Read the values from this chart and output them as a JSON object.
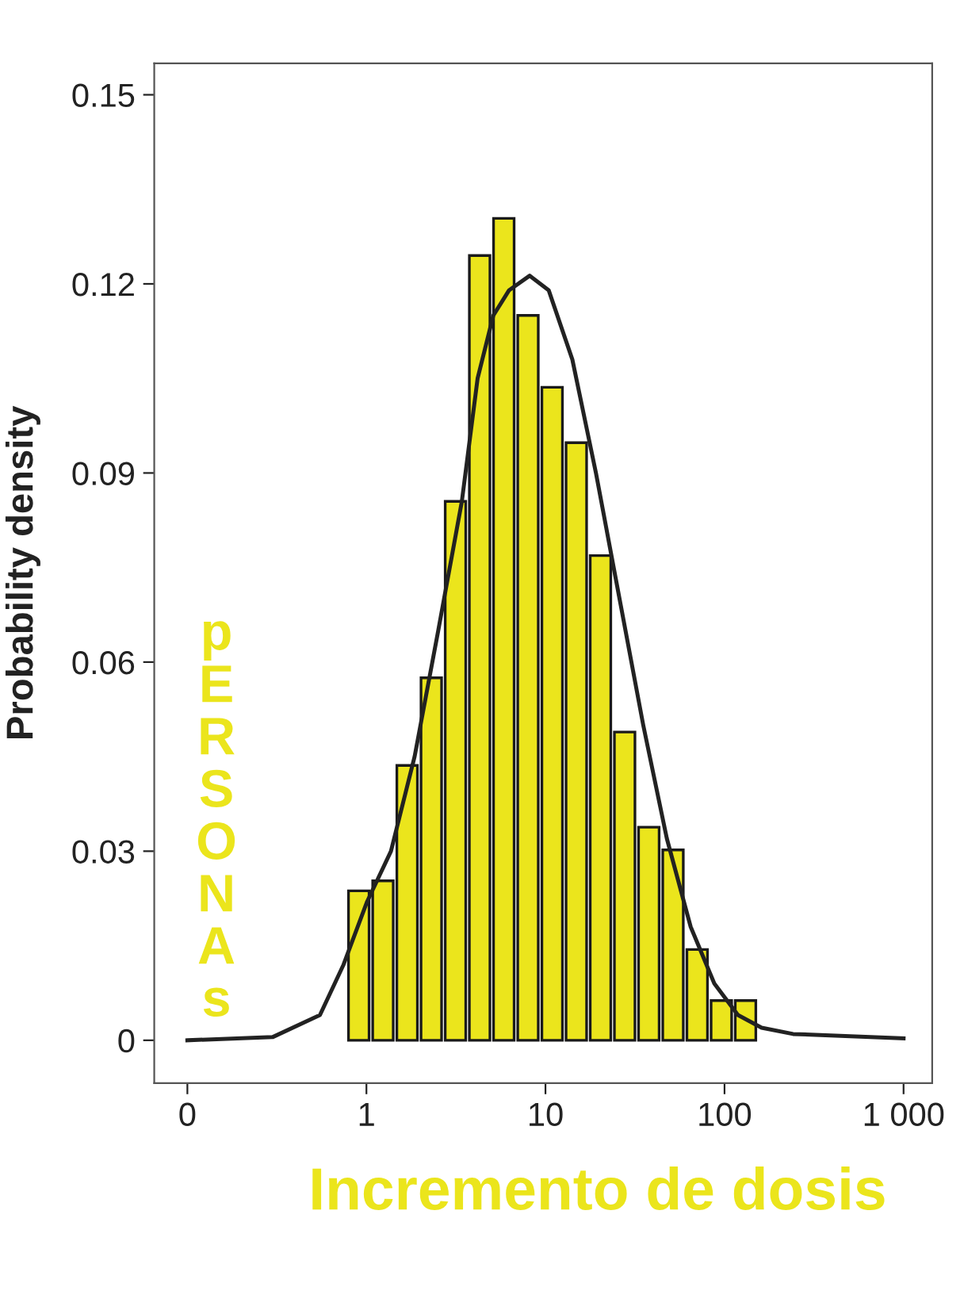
{
  "chart_data": {
    "type": "histogram",
    "ylabel": "Probability density",
    "bins": [
      0.794,
      1.084,
      1.479,
      2.018,
      2.754,
      3.758,
      5.129,
      7.0,
      9.55,
      13.03,
      17.78,
      24.27,
      33.11,
      45.19,
      61.66,
      84.14,
      114.8,
      156.7
    ],
    "values": [
      0.0237,
      0.0253,
      0.0436,
      0.0575,
      0.0855,
      0.1245,
      0.1304,
      0.115,
      0.1036,
      0.0948,
      0.0769,
      0.0489,
      0.0338,
      0.0302,
      0.0144,
      0.0063,
      0.0063
    ],
    "color": "#ebe51c",
    "series": [
      {
        "type": "line",
        "color": "#222222",
        "x": [
          0.1,
          0.299,
          0.55,
          0.745,
          1.009,
          1.371,
          1.858,
          2.518,
          3.412,
          4.178,
          5.117,
          6.266,
          8.166,
          10.42,
          14.13,
          19.14,
          25.94,
          35.16,
          47.64,
          64.71,
          87.7,
          118.9,
          161.1,
          241.5,
          1000
        ],
        "values": [
          0,
          0.0005,
          0.004,
          0.012,
          0.022,
          0.03,
          0.045,
          0.065,
          0.0855,
          0.105,
          0.115,
          0.119,
          0.1213,
          0.119,
          0.108,
          0.09,
          0.07,
          0.05,
          0.032,
          0.018,
          0.009,
          0.004,
          0.002,
          0.001,
          0.0003
        ]
      }
    ],
    "log": "x",
    "xlim": [
      0.0653,
      1445
    ],
    "ylim": [
      -0.0068,
      0.155
    ],
    "xticks": [
      {
        "value": 0.1,
        "label": "0"
      },
      1,
      10,
      100,
      {
        "value": 1000,
        "label": "1 000"
      }
    ],
    "yticks": [
      0,
      0.03,
      0.06,
      0.09,
      0.12,
      0.15
    ],
    "annotations": [
      "pERSONAs",
      "Incremento de dosis"
    ]
  }
}
